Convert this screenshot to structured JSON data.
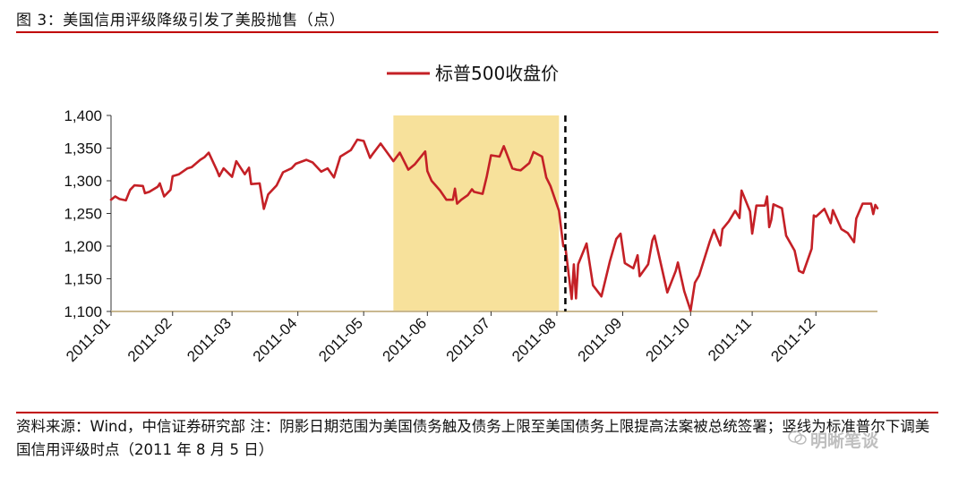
{
  "figure": {
    "title": "图 3：美国信用评级降级引发了美股抛售（点）",
    "source": "资料来源：Wind，中信证券研究部  注：阴影日期范围为美国债务触及债务上限至美国债务上限提高法案被总统签署；竖线为标准普尔下调美国信用评级时点（2011 年 8 月 5 日）",
    "watermark": "明晰笔谈"
  },
  "colors": {
    "line": "#c42026",
    "shade": "#f7e19b",
    "rule": "#c00000",
    "axis": "#c9b890"
  },
  "chart_data": {
    "type": "line",
    "legend": "标普500收盘价",
    "legend_position": "top-center",
    "ylim": [
      1100,
      1400
    ],
    "yticks": [
      1100,
      1150,
      1200,
      1250,
      1300,
      1350,
      1400
    ],
    "ytick_labels": [
      "1,100",
      "1,150",
      "1,200",
      "1,250",
      "1,300",
      "1,350",
      "1,400"
    ],
    "xticks": [
      "2011-01-03",
      "2011-02-01",
      "2011-03-01",
      "2011-04-01",
      "2011-05-02",
      "2011-06-01",
      "2011-07-01",
      "2011-08-01",
      "2011-09-01",
      "2011-10-03",
      "2011-11-01",
      "2011-12-01"
    ],
    "xtick_labels": [
      "2011-01",
      "2011-02",
      "2011-03",
      "2011-04",
      "2011-05",
      "2011-06",
      "2011-07",
      "2011-08",
      "2011-09",
      "2011-10",
      "2011-11",
      "2011-12"
    ],
    "xlim": [
      "2011-01-03",
      "2011-12-30"
    ],
    "shaded_range": [
      "2011-05-16",
      "2011-08-02"
    ],
    "vline": "2011-08-05",
    "grid": false,
    "series": [
      {
        "name": "标普500收盘价",
        "points": [
          [
            "2011-01-03",
            1271
          ],
          [
            "2011-01-05",
            1276
          ],
          [
            "2011-01-07",
            1272
          ],
          [
            "2011-01-10",
            1270
          ],
          [
            "2011-01-12",
            1286
          ],
          [
            "2011-01-14",
            1293
          ],
          [
            "2011-01-18",
            1292
          ],
          [
            "2011-01-19",
            1281
          ],
          [
            "2011-01-21",
            1283
          ],
          [
            "2011-01-25",
            1291
          ],
          [
            "2011-01-26",
            1296
          ],
          [
            "2011-01-28",
            1276
          ],
          [
            "2011-01-31",
            1286
          ],
          [
            "2011-02-01",
            1307
          ],
          [
            "2011-02-04",
            1310
          ],
          [
            "2011-02-08",
            1319
          ],
          [
            "2011-02-10",
            1321
          ],
          [
            "2011-02-14",
            1332
          ],
          [
            "2011-02-16",
            1336
          ],
          [
            "2011-02-18",
            1343
          ],
          [
            "2011-02-22",
            1315
          ],
          [
            "2011-02-23",
            1307
          ],
          [
            "2011-02-25",
            1319
          ],
          [
            "2011-03-01",
            1306
          ],
          [
            "2011-03-03",
            1330
          ],
          [
            "2011-03-07",
            1310
          ],
          [
            "2011-03-09",
            1320
          ],
          [
            "2011-03-10",
            1295
          ],
          [
            "2011-03-14",
            1296
          ],
          [
            "2011-03-16",
            1257
          ],
          [
            "2011-03-18",
            1279
          ],
          [
            "2011-03-22",
            1293
          ],
          [
            "2011-03-25",
            1313
          ],
          [
            "2011-03-29",
            1319
          ],
          [
            "2011-03-31",
            1326
          ],
          [
            "2011-04-05",
            1332
          ],
          [
            "2011-04-08",
            1328
          ],
          [
            "2011-04-12",
            1314
          ],
          [
            "2011-04-15",
            1319
          ],
          [
            "2011-04-18",
            1305
          ],
          [
            "2011-04-21",
            1337
          ],
          [
            "2011-04-26",
            1347
          ],
          [
            "2011-04-29",
            1363
          ],
          [
            "2011-05-02",
            1361
          ],
          [
            "2011-05-05",
            1335
          ],
          [
            "2011-05-06",
            1340
          ],
          [
            "2011-05-10",
            1357
          ],
          [
            "2011-05-12",
            1348
          ],
          [
            "2011-05-16",
            1330
          ],
          [
            "2011-05-19",
            1343
          ],
          [
            "2011-05-23",
            1317
          ],
          [
            "2011-05-26",
            1325
          ],
          [
            "2011-05-31",
            1345
          ],
          [
            "2011-06-01",
            1315
          ],
          [
            "2011-06-03",
            1300
          ],
          [
            "2011-06-07",
            1285
          ],
          [
            "2011-06-10",
            1271
          ],
          [
            "2011-06-13",
            1271
          ],
          [
            "2011-06-14",
            1288
          ],
          [
            "2011-06-15",
            1265
          ],
          [
            "2011-06-17",
            1271
          ],
          [
            "2011-06-20",
            1278
          ],
          [
            "2011-06-22",
            1287
          ],
          [
            "2011-06-23",
            1283
          ],
          [
            "2011-06-27",
            1280
          ],
          [
            "2011-06-29",
            1307
          ],
          [
            "2011-07-01",
            1339
          ],
          [
            "2011-07-05",
            1337
          ],
          [
            "2011-07-07",
            1353
          ],
          [
            "2011-07-11",
            1319
          ],
          [
            "2011-07-13",
            1317
          ],
          [
            "2011-07-15",
            1316
          ],
          [
            "2011-07-19",
            1327
          ],
          [
            "2011-07-21",
            1344
          ],
          [
            "2011-07-25",
            1337
          ],
          [
            "2011-07-27",
            1305
          ],
          [
            "2011-07-29",
            1292
          ],
          [
            "2011-08-02",
            1254
          ],
          [
            "2011-08-04",
            1200
          ],
          [
            "2011-08-05",
            1199
          ],
          [
            "2011-08-08",
            1119
          ],
          [
            "2011-08-09",
            1172
          ],
          [
            "2011-08-10",
            1120
          ],
          [
            "2011-08-11",
            1172
          ],
          [
            "2011-08-15",
            1204
          ],
          [
            "2011-08-18",
            1140
          ],
          [
            "2011-08-22",
            1123
          ],
          [
            "2011-08-26",
            1177
          ],
          [
            "2011-08-29",
            1211
          ],
          [
            "2011-08-31",
            1219
          ],
          [
            "2011-09-02",
            1174
          ],
          [
            "2011-09-06",
            1166
          ],
          [
            "2011-09-08",
            1186
          ],
          [
            "2011-09-09",
            1154
          ],
          [
            "2011-09-13",
            1172
          ],
          [
            "2011-09-15",
            1209
          ],
          [
            "2011-09-16",
            1216
          ],
          [
            "2011-09-22",
            1129
          ],
          [
            "2011-09-26",
            1162
          ],
          [
            "2011-09-27",
            1175
          ],
          [
            "2011-09-30",
            1131
          ],
          [
            "2011-10-03",
            1099
          ],
          [
            "2011-10-05",
            1144
          ],
          [
            "2011-10-07",
            1155
          ],
          [
            "2011-10-12",
            1207
          ],
          [
            "2011-10-14",
            1225
          ],
          [
            "2011-10-17",
            1201
          ],
          [
            "2011-10-18",
            1226
          ],
          [
            "2011-10-21",
            1238
          ],
          [
            "2011-10-24",
            1254
          ],
          [
            "2011-10-26",
            1243
          ],
          [
            "2011-10-27",
            1285
          ],
          [
            "2011-10-31",
            1253
          ],
          [
            "2011-11-01",
            1219
          ],
          [
            "2011-11-03",
            1262
          ],
          [
            "2011-11-07",
            1262
          ],
          [
            "2011-11-08",
            1276
          ],
          [
            "2011-11-09",
            1229
          ],
          [
            "2011-11-10",
            1240
          ],
          [
            "2011-11-11",
            1264
          ],
          [
            "2011-11-15",
            1258
          ],
          [
            "2011-11-17",
            1216
          ],
          [
            "2011-11-21",
            1193
          ],
          [
            "2011-11-23",
            1162
          ],
          [
            "2011-11-25",
            1159
          ],
          [
            "2011-11-29",
            1196
          ],
          [
            "2011-11-30",
            1247
          ],
          [
            "2011-12-01",
            1245
          ],
          [
            "2011-12-05",
            1257
          ],
          [
            "2011-12-08",
            1235
          ],
          [
            "2011-12-09",
            1255
          ],
          [
            "2011-12-13",
            1226
          ],
          [
            "2011-12-16",
            1220
          ],
          [
            "2011-12-19",
            1206
          ],
          [
            "2011-12-20",
            1242
          ],
          [
            "2011-12-23",
            1265
          ],
          [
            "2011-12-27",
            1265
          ],
          [
            "2011-12-28",
            1249
          ],
          [
            "2011-12-29",
            1263
          ],
          [
            "2011-12-30",
            1258
          ]
        ]
      }
    ]
  }
}
